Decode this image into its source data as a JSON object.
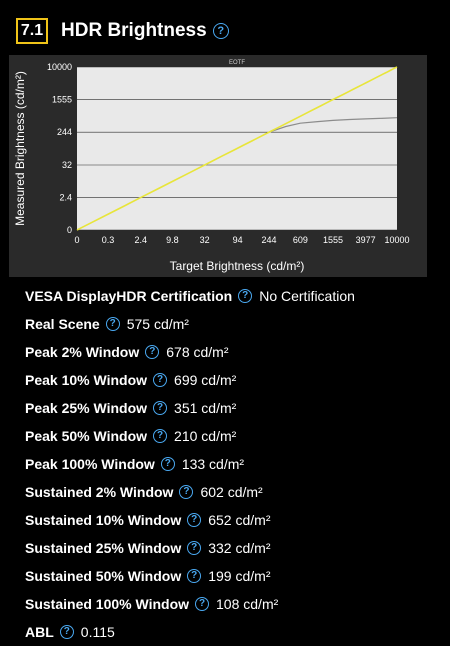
{
  "header": {
    "section_number": "7.1",
    "title": "HDR Brightness",
    "help_glyph": "?"
  },
  "colors": {
    "badge_border": "#f0c419",
    "help_icon": "#4aa8f0",
    "target_line": "#e8e53a",
    "measured_line": "#8c8c8c",
    "chart_bg": "#2a2a2a"
  },
  "chart_data": {
    "type": "line",
    "title": "EOTF",
    "xlabel": "Target Brightness (cd/m²)",
    "ylabel": "Measured Brightness (cd/m²)",
    "x_ticks": [
      "0",
      "0.3",
      "2.4",
      "9.8",
      "32",
      "94",
      "244",
      "609",
      "1555",
      "3977",
      "10000"
    ],
    "y_ticks": [
      "0",
      "2.4",
      "32",
      "244",
      "1555",
      "10000"
    ],
    "x_scale": "pq",
    "y_scale": "pq",
    "grid": true,
    "series": [
      {
        "color": "#e8e53a",
        "x": [
          0,
          10000
        ],
        "y": [
          0,
          10000
        ]
      },
      {
        "color": "#8c8c8c",
        "x": [
          244,
          400,
          609,
          1000,
          1555,
          2500,
          3977,
          6000,
          10000
        ],
        "y": [
          244,
          340,
          410,
          450,
          480,
          505,
          525,
          540,
          560
        ]
      }
    ]
  },
  "specs": [
    {
      "label": "VESA DisplayHDR Certification",
      "value": "No Certification"
    },
    {
      "label": "Real Scene",
      "value": "575 cd/m²"
    },
    {
      "label": "Peak 2% Window",
      "value": "678 cd/m²"
    },
    {
      "label": "Peak 10% Window",
      "value": "699 cd/m²"
    },
    {
      "label": "Peak 25% Window",
      "value": "351 cd/m²"
    },
    {
      "label": "Peak 50% Window",
      "value": "210 cd/m²"
    },
    {
      "label": "Peak 100% Window",
      "value": "133 cd/m²"
    },
    {
      "label": "Sustained 2% Window",
      "value": "602 cd/m²"
    },
    {
      "label": "Sustained 10% Window",
      "value": "652 cd/m²"
    },
    {
      "label": "Sustained 25% Window",
      "value": "332 cd/m²"
    },
    {
      "label": "Sustained 50% Window",
      "value": "199 cd/m²"
    },
    {
      "label": "Sustained 100% Window",
      "value": "108 cd/m²"
    },
    {
      "label": "ABL",
      "value": "0.115"
    }
  ]
}
